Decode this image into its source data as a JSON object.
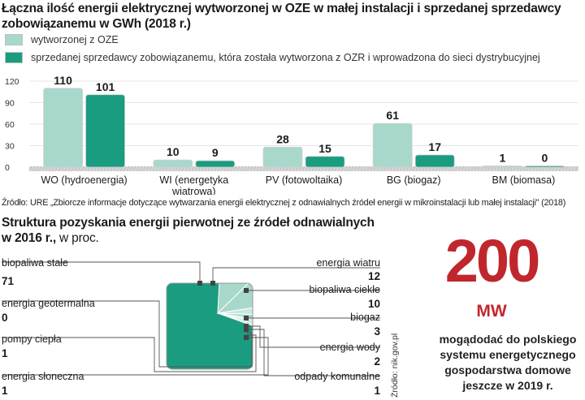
{
  "chart_data": [
    {
      "type": "bar",
      "title": "Łączna ilość energii elektrycznej wytworzonej w OZE w małej instalacji i sprzedanej sprzedawcy zobowiązanemu w GWh (2018 r.)",
      "categories": [
        "WO (hydroenergia)",
        "WI (energetyka wiatrowa)",
        "PV (fotowoltaika)",
        "BG (biogaz)",
        "BM (biomasa)"
      ],
      "series": [
        {
          "name": "wytworzonej z OZE",
          "values": [
            110,
            10,
            28,
            61,
            1
          ],
          "color": "#a8d8cb"
        },
        {
          "name": "sprzedanej sprzedawcy zobowiązanemu, która została wytworzona z OZR i wprowadzona do sieci dystrybucyjnej",
          "values": [
            101,
            9,
            15,
            17,
            0
          ],
          "color": "#1a9c80"
        }
      ],
      "yticks": [
        "0",
        "30",
        "60",
        "90",
        "120"
      ],
      "ylim": [
        0,
        120
      ],
      "source": "Źródło: URE „Zbiorcze informacje dotyczące wytwarzania energii elektrycznej z odnawialnych źródeł energii w mikroinstalacji lub małej instalacji\" (2018)"
    },
    {
      "type": "pie",
      "title": "Struktura pozyskania energii pierwotnej ze źródeł odnawialnych",
      "title_year": "w 2016 r.,",
      "title_unit": " w proc.",
      "slices": [
        {
          "name": "biopaliwa stałe",
          "value": 71
        },
        {
          "name": "energia wiatru",
          "value": 12
        },
        {
          "name": "biopaliwa ciekłe",
          "value": 10
        },
        {
          "name": "biogaz",
          "value": 3
        },
        {
          "name": "energia wody",
          "value": 2
        },
        {
          "name": "odpady komunalne",
          "value": 1
        },
        {
          "name": "energia słoneczna",
          "value": 1
        },
        {
          "name": "pompy ciepła",
          "value": 1
        },
        {
          "name": "energia geotermalna",
          "value": 0
        }
      ],
      "source": "Źródło: nik.gov.pl"
    }
  ],
  "highlight": {
    "value": "200",
    "unit": "MW",
    "note": "mogądodać do polskiego systemu energetycznego gospodarstwa domowe jeszcze w 2019 r."
  },
  "colors": {
    "light": "#a8d8cb",
    "dark": "#1a9c80",
    "accent": "#c0272d"
  }
}
